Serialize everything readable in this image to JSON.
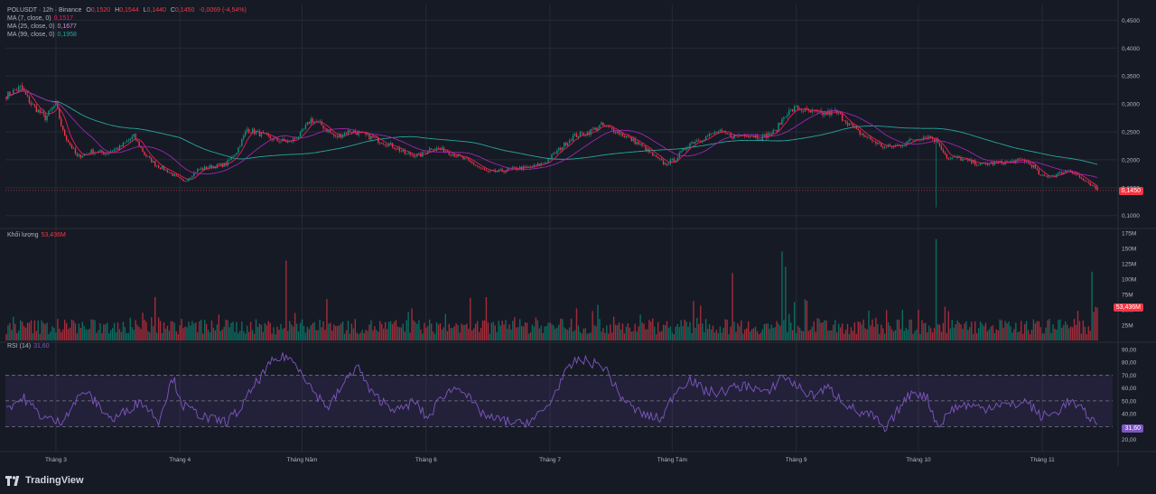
{
  "legend": {
    "symbol": "POLUSDT · 12h · Binance",
    "open_label": "O",
    "open": "0,1520",
    "high_label": "H",
    "high": "0,1544",
    "low_label": "L",
    "low": "0,1440",
    "close_label": "C",
    "close": "0,1450",
    "change": "-0,0069 (-4,54%)",
    "ma7_label": "MA (7, close, 0)",
    "ma7_value": "0,1517",
    "ma25_label": "MA (25, close, 0)",
    "ma25_value": "0,1677",
    "ma99_label": "MA (99, close, 0)",
    "ma99_value": "0,1958"
  },
  "volume_legend": {
    "label": "Khối lượng",
    "value": "53,436M"
  },
  "rsi_legend": {
    "label": "RSI (14)",
    "value": "31,60"
  },
  "tags": {
    "price": "0,1450",
    "volume": "53,436M",
    "rsi": "31,60"
  },
  "brand": {
    "name": "TradingView",
    "logo_icon": "tradingview-logo-icon"
  },
  "colors": {
    "background": "#161a25",
    "up": "#089981",
    "down": "#f23645",
    "ma7": "#e91e63",
    "ma25": "#9c27b0",
    "ma99": "#26a69a",
    "rsi": "#7e57c2",
    "grid": "#262a35",
    "text": "#b2b5be"
  },
  "chart_data": {
    "type": "candlestick",
    "interval": "12h",
    "x_tick_labels": [
      "Tháng 3",
      "Tháng 4",
      "Tháng Năm",
      "Tháng 6",
      "Tháng 7",
      "Tháng Tám",
      "Tháng 9",
      "Tháng 10",
      "Tháng 11"
    ],
    "price_axis": {
      "ticks": [
        0.45,
        0.4,
        0.35,
        0.3,
        0.25,
        0.2,
        0.15,
        0.1
      ],
      "tick_labels": [
        "0,4500",
        "0,4000",
        "0,3500",
        "0,3000",
        "0,2500",
        "0,2000",
        "0,1500",
        "0,1000"
      ],
      "range": [
        0.085,
        0.47
      ]
    },
    "volume_axis": {
      "ticks": [
        175,
        150,
        125,
        100,
        75,
        50,
        25
      ],
      "tick_labels": [
        "175M",
        "150M",
        "125M",
        "100M",
        "75M",
        "50M",
        "25M"
      ],
      "range": [
        0,
        175
      ]
    },
    "rsi_axis": {
      "ticks": [
        90,
        80,
        70,
        60,
        50,
        40,
        30,
        20
      ],
      "tick_labels": [
        "90,00",
        "80,00",
        "70,00",
        "60,00",
        "50,00",
        "40,00",
        "30,00",
        "20,00"
      ],
      "range": [
        12,
        92
      ],
      "band": [
        30,
        70
      ],
      "midline": 50
    },
    "price_anchors": [
      [
        0,
        0.315
      ],
      [
        8,
        0.33
      ],
      [
        14,
        0.3
      ],
      [
        22,
        0.275
      ],
      [
        28,
        0.3
      ],
      [
        32,
        0.25
      ],
      [
        40,
        0.205
      ],
      [
        48,
        0.215
      ],
      [
        56,
        0.212
      ],
      [
        64,
        0.222
      ],
      [
        72,
        0.242
      ],
      [
        78,
        0.21
      ],
      [
        84,
        0.192
      ],
      [
        92,
        0.178
      ],
      [
        100,
        0.16
      ],
      [
        108,
        0.182
      ],
      [
        116,
        0.188
      ],
      [
        124,
        0.192
      ],
      [
        130,
        0.215
      ],
      [
        136,
        0.255
      ],
      [
        144,
        0.245
      ],
      [
        152,
        0.235
      ],
      [
        160,
        0.232
      ],
      [
        166,
        0.245
      ],
      [
        172,
        0.272
      ],
      [
        178,
        0.262
      ],
      [
        186,
        0.24
      ],
      [
        194,
        0.252
      ],
      [
        202,
        0.245
      ],
      [
        210,
        0.235
      ],
      [
        218,
        0.225
      ],
      [
        226,
        0.21
      ],
      [
        234,
        0.208
      ],
      [
        240,
        0.222
      ],
      [
        248,
        0.216
      ],
      [
        256,
        0.205
      ],
      [
        264,
        0.192
      ],
      [
        272,
        0.177
      ],
      [
        280,
        0.18
      ],
      [
        288,
        0.185
      ],
      [
        296,
        0.186
      ],
      [
        304,
        0.195
      ],
      [
        312,
        0.218
      ],
      [
        320,
        0.242
      ],
      [
        328,
        0.248
      ],
      [
        336,
        0.262
      ],
      [
        344,
        0.252
      ],
      [
        352,
        0.238
      ],
      [
        360,
        0.222
      ],
      [
        366,
        0.205
      ],
      [
        372,
        0.192
      ],
      [
        378,
        0.202
      ],
      [
        386,
        0.23
      ],
      [
        394,
        0.24
      ],
      [
        402,
        0.25
      ],
      [
        410,
        0.242
      ],
      [
        418,
        0.246
      ],
      [
        426,
        0.24
      ],
      [
        434,
        0.25
      ],
      [
        440,
        0.282
      ],
      [
        446,
        0.293
      ],
      [
        454,
        0.285
      ],
      [
        462,
        0.282
      ],
      [
        468,
        0.286
      ],
      [
        474,
        0.27
      ],
      [
        480,
        0.252
      ],
      [
        488,
        0.236
      ],
      [
        496,
        0.222
      ],
      [
        504,
        0.226
      ],
      [
        512,
        0.236
      ],
      [
        520,
        0.243
      ],
      [
        526,
        0.232
      ],
      [
        532,
        0.2
      ],
      [
        536,
        0.205
      ],
      [
        542,
        0.198
      ],
      [
        550,
        0.192
      ],
      [
        558,
        0.194
      ],
      [
        566,
        0.196
      ],
      [
        574,
        0.2
      ],
      [
        580,
        0.188
      ],
      [
        584,
        0.17
      ],
      [
        592,
        0.172
      ],
      [
        600,
        0.183
      ],
      [
        604,
        0.174
      ],
      [
        610,
        0.158
      ],
      [
        614,
        0.15
      ],
      [
        616,
        0.145
      ]
    ],
    "notable_wicks": [
      {
        "index": 525,
        "low": 0.115
      }
    ],
    "volume_spikes_m": [
      {
        "index": 158,
        "value": 130
      },
      {
        "index": 410,
        "value": 110
      },
      {
        "index": 438,
        "value": 145
      },
      {
        "index": 440,
        "value": 120
      },
      {
        "index": 525,
        "value": 165
      },
      {
        "index": 613,
        "value": 112
      }
    ],
    "rsi_anchors": [
      [
        0,
        45
      ],
      [
        10,
        52
      ],
      [
        20,
        38
      ],
      [
        30,
        33
      ],
      [
        44,
        58
      ],
      [
        60,
        35
      ],
      [
        76,
        50
      ],
      [
        86,
        35
      ],
      [
        94,
        68
      ],
      [
        100,
        46
      ],
      [
        114,
        36
      ],
      [
        124,
        34
      ],
      [
        132,
        43
      ],
      [
        140,
        62
      ],
      [
        150,
        80
      ],
      [
        158,
        85
      ],
      [
        166,
        75
      ],
      [
        174,
        56
      ],
      [
        182,
        45
      ],
      [
        190,
        62
      ],
      [
        198,
        78
      ],
      [
        206,
        56
      ],
      [
        214,
        48
      ],
      [
        222,
        42
      ],
      [
        230,
        50
      ],
      [
        238,
        36
      ],
      [
        246,
        54
      ],
      [
        256,
        62
      ],
      [
        266,
        43
      ],
      [
        274,
        36
      ],
      [
        280,
        35
      ],
      [
        290,
        32
      ],
      [
        298,
        36
      ],
      [
        306,
        46
      ],
      [
        314,
        68
      ],
      [
        322,
        82
      ],
      [
        330,
        80
      ],
      [
        338,
        76
      ],
      [
        346,
        55
      ],
      [
        354,
        44
      ],
      [
        362,
        38
      ],
      [
        370,
        36
      ],
      [
        378,
        58
      ],
      [
        386,
        67
      ],
      [
        394,
        58
      ],
      [
        402,
        56
      ],
      [
        410,
        60
      ],
      [
        420,
        62
      ],
      [
        430,
        55
      ],
      [
        438,
        70
      ],
      [
        446,
        62
      ],
      [
        454,
        54
      ],
      [
        464,
        60
      ],
      [
        474,
        48
      ],
      [
        482,
        40
      ],
      [
        490,
        38
      ],
      [
        496,
        26
      ],
      [
        504,
        44
      ],
      [
        512,
        58
      ],
      [
        520,
        52
      ],
      [
        526,
        30
      ],
      [
        534,
        44
      ],
      [
        542,
        47
      ],
      [
        552,
        44
      ],
      [
        560,
        48
      ],
      [
        568,
        46
      ],
      [
        576,
        50
      ],
      [
        584,
        38
      ],
      [
        592,
        40
      ],
      [
        600,
        50
      ],
      [
        608,
        42
      ],
      [
        616,
        32
      ]
    ],
    "last": {
      "open": 0.152,
      "high": 0.1544,
      "low": 0.144,
      "close": 0.145
    }
  }
}
